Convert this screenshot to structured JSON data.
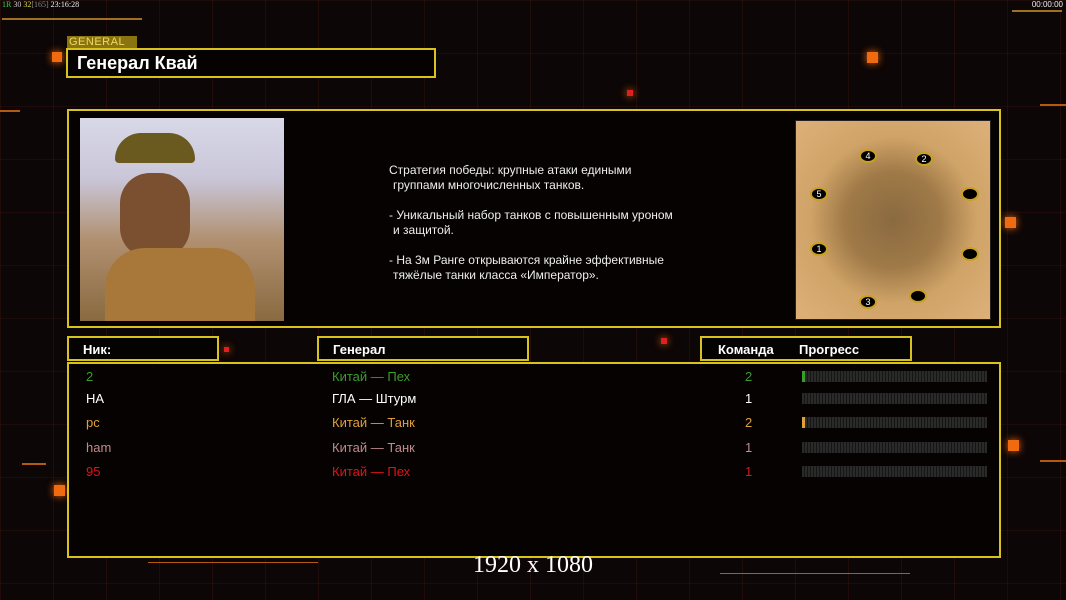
{
  "status_bar": {
    "rank": "1R",
    "v1": "30",
    "v2": "32",
    "bracket": "[165]",
    "clock": "23:16:28",
    "timer": "00:00:00"
  },
  "general_tag": "GENERAL",
  "title": "Генерал Квай",
  "description": [
    "Стратегия победы: крупные атаки едиными",
    "группами многочисленных танков.",
    "",
    "- Уникальный набор танков с повышенным уроном",
    "и защитой.",
    "",
    "- На 3м Ранге открываются крайне эффективные",
    "тяжёлые танки класса «Император»."
  ],
  "map": {
    "start_positions": [
      "1",
      "2",
      "3",
      "4",
      "5"
    ]
  },
  "headers": {
    "nick": "Ник:",
    "general": "Генерал",
    "team": "Команда",
    "progress": "Прогресс"
  },
  "players": [
    {
      "nick": "2",
      "general": "Китай — Пех",
      "team": "2",
      "progress": 0.01,
      "color": "#3c9c2c"
    },
    {
      "nick": "НА",
      "general": "ГЛА — Штурм",
      "team": "1",
      "progress": 0,
      "color": "#ffffff"
    },
    {
      "nick": "pc",
      "general": "Китай — Танк",
      "team": "2",
      "progress": 0.01,
      "color": "#e0a038"
    },
    {
      "nick": "ham",
      "general": "Китай — Танк",
      "team": "1",
      "progress": 0,
      "color": "#c08a8a"
    },
    {
      "nick": "95",
      "general": "Китай — Пех",
      "team": "1",
      "progress": 0,
      "color": "#e01414"
    }
  ],
  "resolution": "1920 x 1080"
}
